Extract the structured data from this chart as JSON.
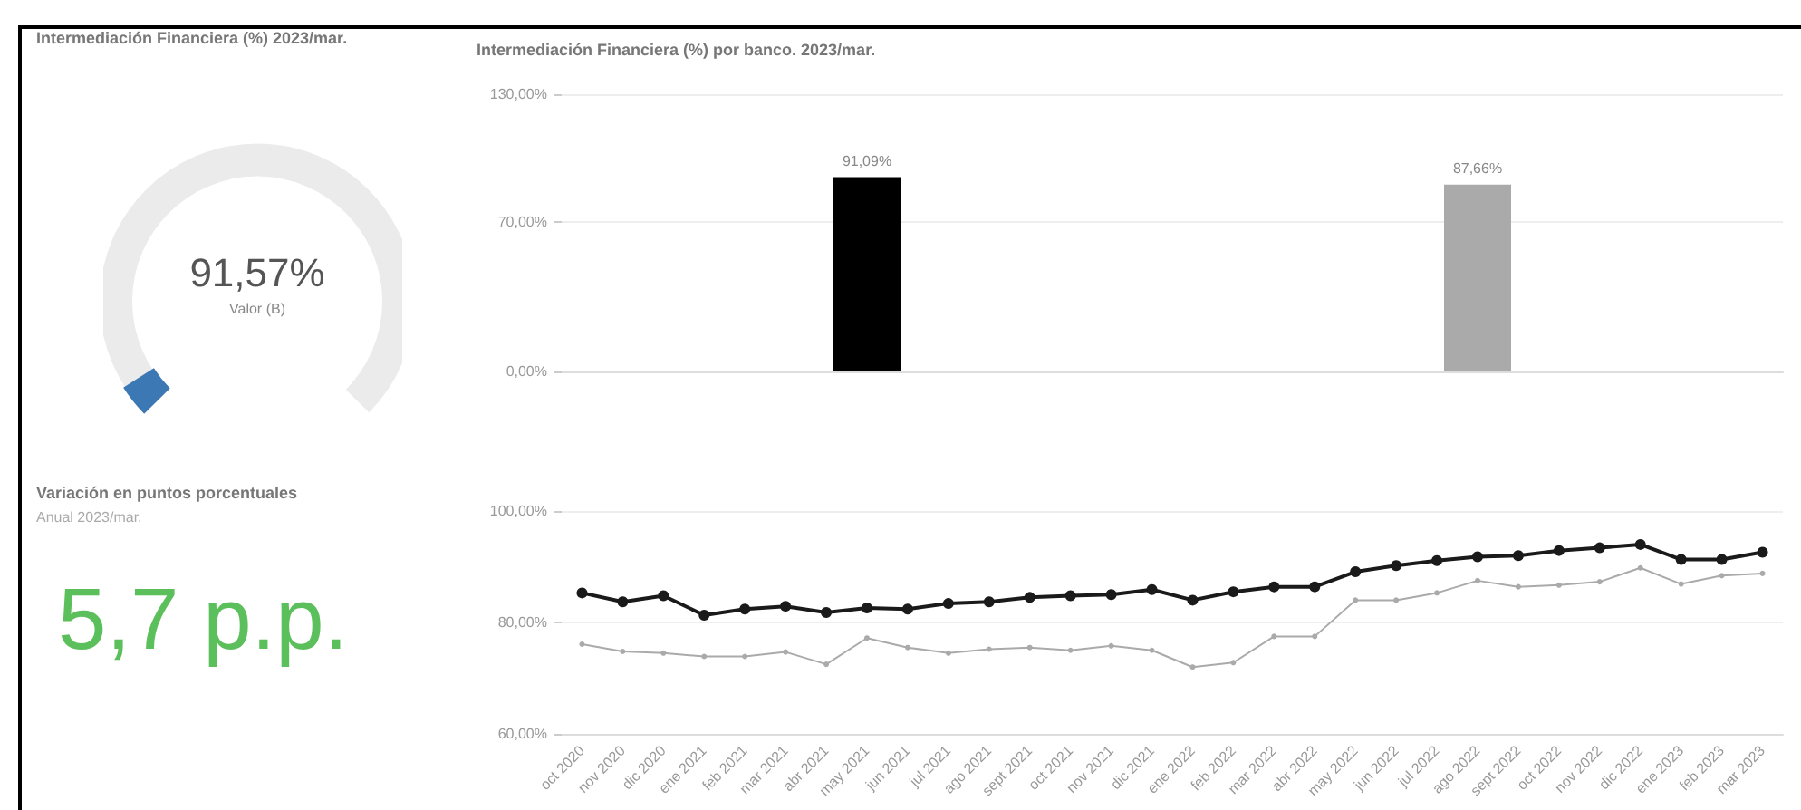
{
  "chart_data": [
    {
      "type": "other",
      "title": "Intermediación Financiera (%) 2023/mar.",
      "annotations": [
        "91,57%",
        "Valor (B)"
      ]
    },
    {
      "type": "bar",
      "title": "Intermediación Financiera (%) por banco. 2023/mar.",
      "categories": [
        null,
        null
      ],
      "values": [
        91.09,
        87.66
      ],
      "colors": [
        "#000000",
        "#aaaaaa"
      ],
      "value_labels": [
        "91,09%",
        "87,66%"
      ],
      "ylim": [
        0,
        130
      ],
      "yticks": [
        {
          "value": 0,
          "label": "0,00%"
        },
        {
          "value": 70,
          "label": "70,00%"
        },
        {
          "value": 130,
          "label": "130,00%"
        }
      ],
      "grid": "y"
    },
    {
      "type": "other",
      "title": "Variación en puntos porcentuales",
      "subtitle": "Anual 2023/mar.",
      "annotations": [
        "5,7 p.p."
      ]
    },
    {
      "type": "line",
      "categories": [
        "oct 2020",
        "nov 2020",
        "dic 2020",
        "ene 2021",
        "feb 2021",
        "mar 2021",
        "abr 2021",
        "may 2021",
        "jun 2021",
        "jul 2021",
        "ago 2021",
        "sept 2021",
        "oct 2021",
        "nov 2021",
        "dic 2021",
        "ene 2022",
        "feb 2022",
        "mar 2022",
        "abr 2022",
        "may 2022",
        "jun 2022",
        "jul 2022",
        "ago 2022",
        "sept 2022",
        "oct 2022",
        "nov 2022",
        "dic 2022",
        "ene 2023",
        "feb 2023",
        "mar 2023"
      ],
      "series": [
        {
          "color": "#1a1a1a",
          "values": [
            85.3,
            83.7,
            84.8,
            81.3,
            82.4,
            82.9,
            81.8,
            82.6,
            82.4,
            83.4,
            83.7,
            84.5,
            84.8,
            85.0,
            85.9,
            84.0,
            85.5,
            86.4,
            86.4,
            89.1,
            90.2,
            91.1,
            91.8,
            92.0,
            92.9,
            93.4,
            94.0,
            91.3,
            91.3,
            92.6
          ]
        },
        {
          "color": "#aaaaaa",
          "values": [
            76.1,
            74.8,
            74.5,
            73.9,
            73.9,
            74.7,
            72.5,
            77.2,
            75.5,
            74.5,
            75.2,
            75.5,
            75.0,
            75.8,
            75.0,
            72.0,
            72.8,
            77.5,
            77.5,
            84.0,
            84.0,
            85.3,
            87.5,
            86.4,
            86.7,
            87.3,
            89.8,
            86.9,
            88.4,
            88.8
          ]
        }
      ],
      "ylim": [
        60,
        100
      ],
      "yticks": [
        {
          "value": 60,
          "label": "60,00%"
        },
        {
          "value": 80,
          "label": "80,00%"
        },
        {
          "value": 100,
          "label": "100,00%"
        }
      ],
      "grid": "y",
      "marker": "circle",
      "line_style": "solid"
    }
  ]
}
